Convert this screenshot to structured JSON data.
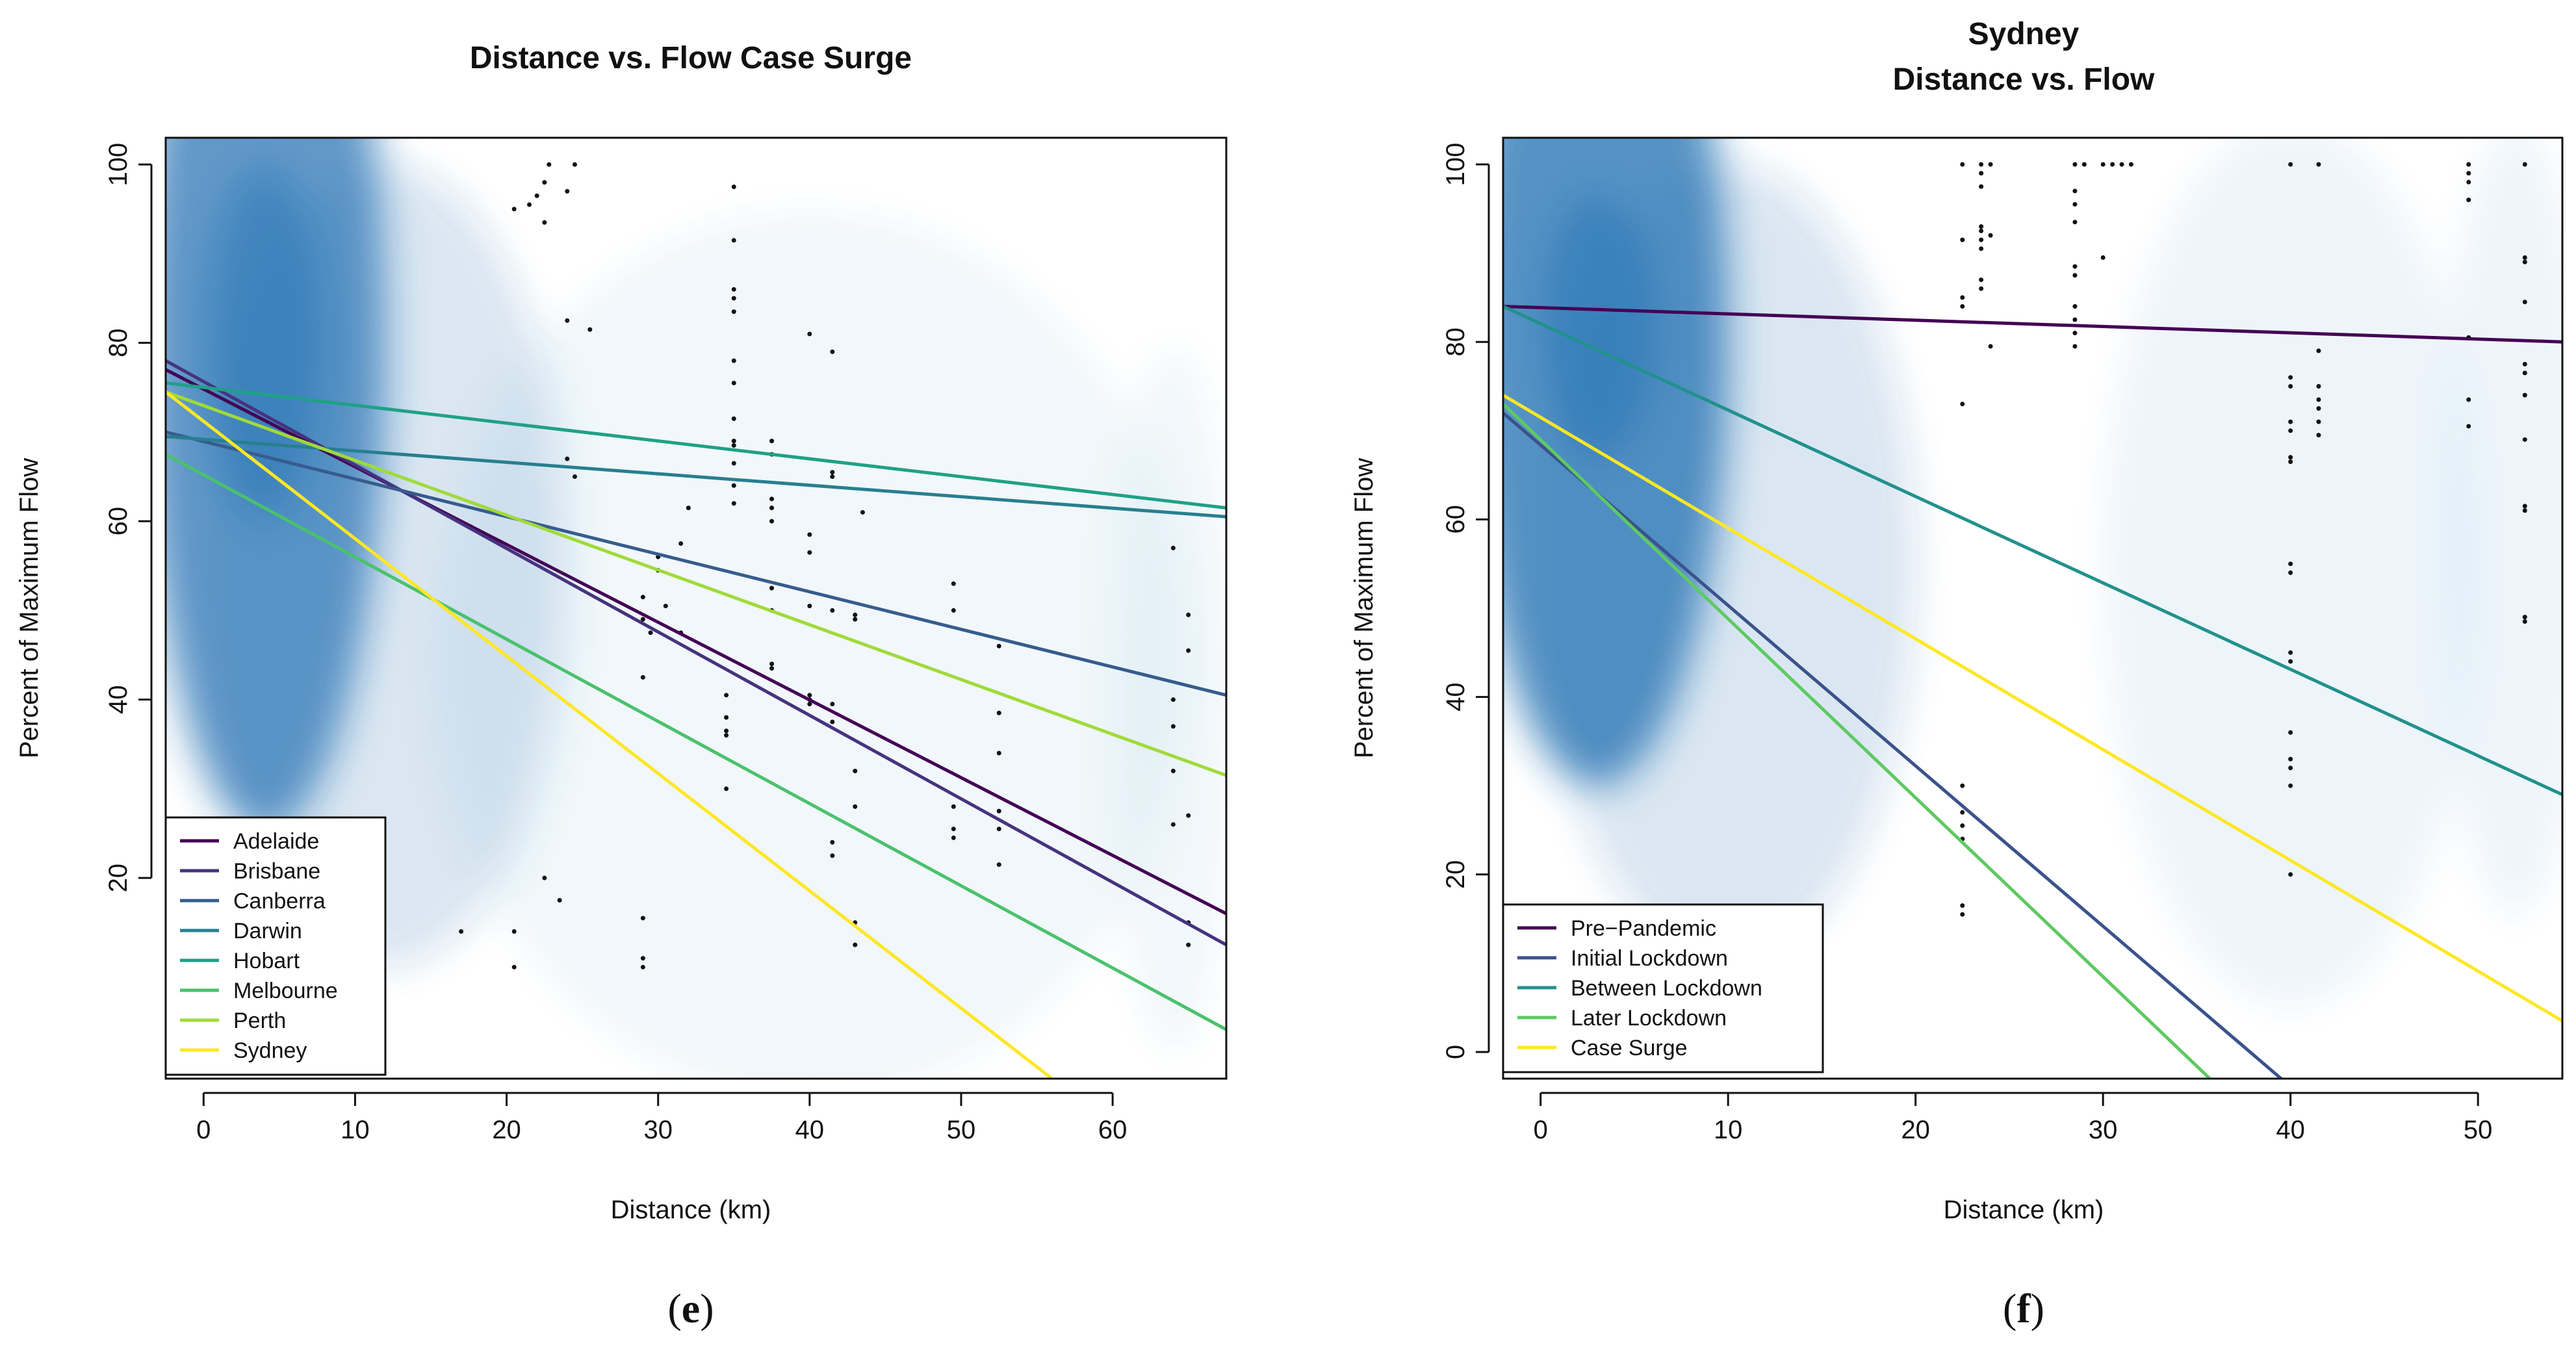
{
  "figure": {
    "panels": [
      {
        "letter": "e",
        "caption_open": "(",
        "caption_close": ")"
      },
      {
        "letter": "f",
        "caption_open": "(",
        "caption_close": ")"
      }
    ]
  },
  "chart_data": [
    {
      "type": "line",
      "title": "Distance vs. Flow Case Surge",
      "title_lines": [
        "Distance vs. Flow Case Surge"
      ],
      "xlabel": "Distance (km)",
      "ylabel": "Percent of Maximum Flow",
      "xlim": [
        -2.5,
        67.5
      ],
      "ylim": [
        -2.5,
        103
      ],
      "xticks": [
        0,
        10,
        20,
        30,
        40,
        50,
        60
      ],
      "yticks": [
        20,
        40,
        60,
        80,
        100
      ],
      "grid": false,
      "legend_position": "bottom-left",
      "density_background": "blue kernel density shading, highest near 2-6 km and 60-90 %",
      "series": [
        {
          "name": "Adelaide",
          "color": "#440154",
          "x": [
            -2.5,
            67.5
          ],
          "y": [
            77.0,
            16.0
          ]
        },
        {
          "name": "Brisbane",
          "color": "#46337e",
          "x": [
            -2.5,
            67.5
          ],
          "y": [
            78.0,
            12.5
          ]
        },
        {
          "name": "Canberra",
          "color": "#365c8d",
          "x": [
            -2.5,
            67.5
          ],
          "y": [
            70.0,
            40.5
          ]
        },
        {
          "name": "Darwin",
          "color": "#277f8e",
          "x": [
            -2.5,
            67.5
          ],
          "y": [
            69.5,
            60.5
          ]
        },
        {
          "name": "Hobart",
          "color": "#1fa187",
          "x": [
            -2.5,
            67.5
          ],
          "y": [
            75.5,
            61.5
          ]
        },
        {
          "name": "Melbourne",
          "color": "#4ac16d",
          "x": [
            -2.5,
            67.5
          ],
          "y": [
            67.5,
            3.0
          ]
        },
        {
          "name": "Perth",
          "color": "#a0da39",
          "x": [
            -2.5,
            67.5
          ],
          "y": [
            74.5,
            31.5
          ]
        },
        {
          "name": "Sydney",
          "color": "#fde725",
          "x": [
            -2.5,
            56.0
          ],
          "y": [
            74.5,
            -2.5
          ]
        }
      ],
      "points": [
        [
          20.5,
          95
        ],
        [
          21.5,
          95.5
        ],
        [
          22,
          96.5
        ],
        [
          22.5,
          98
        ],
        [
          22.5,
          93.5
        ],
        [
          22.8,
          100
        ],
        [
          24.5,
          100
        ],
        [
          24,
          97
        ],
        [
          24,
          82.5
        ],
        [
          25.5,
          81.5
        ],
        [
          24,
          67
        ],
        [
          24.5,
          65
        ],
        [
          22.5,
          20
        ],
        [
          23.5,
          17.5
        ],
        [
          17,
          14
        ],
        [
          20.5,
          14
        ],
        [
          20.5,
          10
        ],
        [
          9.5,
          13.5
        ],
        [
          29,
          51.5
        ],
        [
          29,
          49
        ],
        [
          29,
          42.5
        ],
        [
          29.5,
          47.5
        ],
        [
          30,
          54.5
        ],
        [
          30,
          56
        ],
        [
          30.5,
          50.5
        ],
        [
          31.5,
          57.5
        ],
        [
          32,
          61.5
        ],
        [
          31.5,
          47.5
        ],
        [
          29,
          15.5
        ],
        [
          29,
          11
        ],
        [
          29,
          10
        ],
        [
          35,
          97.5
        ],
        [
          35,
          91.5
        ],
        [
          35,
          86
        ],
        [
          35,
          85
        ],
        [
          35,
          83.5
        ],
        [
          35,
          78
        ],
        [
          35,
          75.5
        ],
        [
          35,
          71.5
        ],
        [
          35,
          69
        ],
        [
          35,
          68.5
        ],
        [
          35,
          66.5
        ],
        [
          35,
          64
        ],
        [
          35,
          62
        ],
        [
          34.5,
          40.5
        ],
        [
          34.5,
          38
        ],
        [
          34.5,
          36.5
        ],
        [
          34.5,
          36
        ],
        [
          34.5,
          30
        ],
        [
          37.5,
          69
        ],
        [
          37.5,
          67.5
        ],
        [
          37.5,
          62.5
        ],
        [
          37.5,
          61.5
        ],
        [
          37.5,
          60
        ],
        [
          37.5,
          52.5
        ],
        [
          37.5,
          50
        ],
        [
          37.5,
          44
        ],
        [
          37.5,
          43.5
        ],
        [
          40,
          81
        ],
        [
          40,
          58.5
        ],
        [
          40,
          56.5
        ],
        [
          40,
          50.5
        ],
        [
          40,
          40.5
        ],
        [
          40,
          40
        ],
        [
          40,
          39.5
        ],
        [
          41.5,
          79
        ],
        [
          41.5,
          65.5
        ],
        [
          41.5,
          65
        ],
        [
          41.5,
          50
        ],
        [
          41.5,
          39.5
        ],
        [
          41.5,
          37.5
        ],
        [
          41.5,
          24
        ],
        [
          41.5,
          22.5
        ],
        [
          43,
          49.5
        ],
        [
          43,
          49
        ],
        [
          43,
          32
        ],
        [
          43,
          28
        ],
        [
          43,
          15
        ],
        [
          43,
          12.5
        ],
        [
          43.5,
          61
        ],
        [
          49.5,
          53
        ],
        [
          49.5,
          50
        ],
        [
          49.5,
          28
        ],
        [
          49.5,
          25.5
        ],
        [
          49.5,
          24.5
        ],
        [
          52.5,
          46
        ],
        [
          52.5,
          38.5
        ],
        [
          52.5,
          34
        ],
        [
          52.5,
          27.5
        ],
        [
          52.5,
          25.5
        ],
        [
          52.5,
          21.5
        ],
        [
          64,
          57
        ],
        [
          64,
          40
        ],
        [
          64,
          37
        ],
        [
          64,
          32
        ],
        [
          64,
          26
        ],
        [
          65,
          49.5
        ],
        [
          65,
          45.5
        ],
        [
          65,
          27
        ],
        [
          65,
          15
        ],
        [
          65,
          12.5
        ]
      ]
    },
    {
      "type": "line",
      "title": "Sydney\nDistance vs. Flow",
      "title_lines": [
        "Sydney",
        "Distance vs. Flow"
      ],
      "xlabel": "Distance (km)",
      "ylabel": "Percent of Maximum Flow",
      "xlim": [
        -2,
        54.5
      ],
      "ylim": [
        -3,
        103
      ],
      "xticks": [
        0,
        10,
        20,
        30,
        40,
        50
      ],
      "yticks": [
        0,
        20,
        40,
        60,
        80,
        100
      ],
      "grid": false,
      "legend_position": "bottom-left",
      "density_background": "blue kernel density shading, highest near 2-5 km and 65-95 %",
      "series": [
        {
          "name": "Pre−Pandemic",
          "color": "#440154",
          "x": [
            -2,
            54.5
          ],
          "y": [
            84.0,
            80.0
          ]
        },
        {
          "name": "Initial Lockdown",
          "color": "#3b528b",
          "x": [
            -2,
            39.5
          ],
          "y": [
            72.0,
            -3.0
          ]
        },
        {
          "name": "Between Lockdown",
          "color": "#21918c",
          "x": [
            -2,
            54.5
          ],
          "y": [
            84.0,
            29.0
          ]
        },
        {
          "name": "Later Lockdown",
          "color": "#5ec962",
          "x": [
            -2,
            35.7
          ],
          "y": [
            73.0,
            -3.0
          ]
        },
        {
          "name": "Case Surge",
          "color": "#fde725",
          "x": [
            -2,
            54.5
          ],
          "y": [
            74.0,
            3.5
          ]
        }
      ],
      "points": [
        [
          22.5,
          100
        ],
        [
          22.5,
          91.5
        ],
        [
          22.5,
          85
        ],
        [
          22.5,
          84
        ],
        [
          22.5,
          73
        ],
        [
          22.5,
          30
        ],
        [
          22.5,
          27
        ],
        [
          22.5,
          25.5
        ],
        [
          22.5,
          24
        ],
        [
          22.5,
          16.5
        ],
        [
          22.5,
          15.5
        ],
        [
          23.5,
          100
        ],
        [
          23.5,
          99
        ],
        [
          23.5,
          97.5
        ],
        [
          23.5,
          93
        ],
        [
          23.5,
          92.5
        ],
        [
          23.5,
          91.5
        ],
        [
          23.5,
          90.5
        ],
        [
          23.5,
          87
        ],
        [
          23.5,
          86
        ],
        [
          24,
          100
        ],
        [
          24,
          92
        ],
        [
          24,
          79.5
        ],
        [
          28.5,
          100
        ],
        [
          28.5,
          97
        ],
        [
          28.5,
          95.5
        ],
        [
          28.5,
          93.5
        ],
        [
          28.5,
          88.5
        ],
        [
          28.5,
          87.5
        ],
        [
          28.5,
          84
        ],
        [
          28.5,
          82.5
        ],
        [
          28.5,
          81
        ],
        [
          28.5,
          79.5
        ],
        [
          29,
          100
        ],
        [
          30,
          100
        ],
        [
          30.5,
          100
        ],
        [
          31,
          100
        ],
        [
          31.5,
          100
        ],
        [
          30,
          89.5
        ],
        [
          40,
          100
        ],
        [
          40,
          76
        ],
        [
          40,
          75
        ],
        [
          40,
          71
        ],
        [
          40,
          70
        ],
        [
          40,
          67
        ],
        [
          40,
          66.5
        ],
        [
          40,
          55
        ],
        [
          40,
          54
        ],
        [
          40,
          45
        ],
        [
          40,
          44
        ],
        [
          40,
          36
        ],
        [
          40,
          33
        ],
        [
          40,
          32
        ],
        [
          40,
          30
        ],
        [
          40,
          20
        ],
        [
          41.5,
          100
        ],
        [
          41.5,
          79
        ],
        [
          41.5,
          75
        ],
        [
          41.5,
          73.5
        ],
        [
          41.5,
          72.5
        ],
        [
          41.5,
          71
        ],
        [
          41.5,
          69.5
        ],
        [
          49.5,
          100
        ],
        [
          49.5,
          99
        ],
        [
          49.5,
          98
        ],
        [
          49.5,
          96
        ],
        [
          49.5,
          80.5
        ],
        [
          49.5,
          73.5
        ],
        [
          49.5,
          70.5
        ],
        [
          52.5,
          100
        ],
        [
          52.5,
          89.5
        ],
        [
          52.5,
          89
        ],
        [
          52.5,
          84.5
        ],
        [
          52.5,
          77.5
        ],
        [
          52.5,
          76.5
        ],
        [
          52.5,
          74
        ],
        [
          52.5,
          69
        ],
        [
          52.5,
          61.5
        ],
        [
          52.5,
          61
        ],
        [
          52.5,
          49
        ],
        [
          52.5,
          48.5
        ]
      ]
    }
  ]
}
